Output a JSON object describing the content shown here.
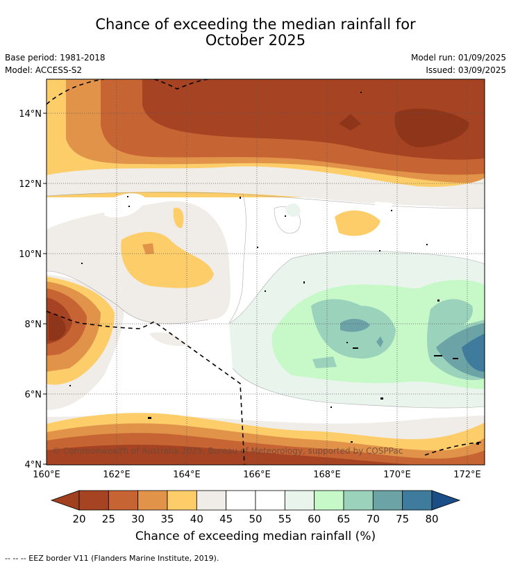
{
  "title_line1": "Chance of exceeding the median rainfall for",
  "title_line2": "October 2025",
  "base_period": "Base period: 1981-2018",
  "model": "Model: ACCESS-S2",
  "model_run": "Model run: 01/09/2025",
  "issued": "Issued: 03/09/2025",
  "copyright": "© Commonwealth of Australia 2025, Bureau of Meteorology, supported by COSPPac",
  "lat_labels": [
    "14°N",
    "12°N",
    "10°N",
    "8°N",
    "6°N",
    "4°N"
  ],
  "lon_labels": [
    "160°E",
    "162°E",
    "164°E",
    "166°E",
    "168°E",
    "170°E",
    "172°E"
  ],
  "colorbar": {
    "ticks": [
      "20",
      "25",
      "30",
      "35",
      "40",
      "45",
      "50",
      "55",
      "60",
      "65",
      "70",
      "75",
      "80"
    ],
    "colors": [
      "#a54323",
      "#c76433",
      "#e19449",
      "#fdcd6a",
      "#f0ece7",
      "#ffffff",
      "#ffffff",
      "#e9f5ec",
      "#c6f8c8",
      "#9bd2bc",
      "#6ca3a6",
      "#3f7b9c"
    ],
    "low_color": "#a0401f",
    "high_color": "#1b4e86",
    "label": "Chance of exceeding median rainfall (%)"
  },
  "eez_note": "--  --  -- EEZ border V11 (Flanders Marine Institute, 2019)."
}
